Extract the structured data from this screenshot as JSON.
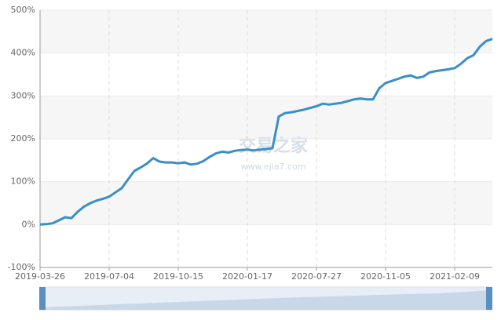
{
  "chart_data": {
    "type": "line",
    "categories": [
      "2019-03-26",
      null,
      null,
      null,
      null,
      null,
      null,
      null,
      null,
      null,
      null,
      "2019-07-04",
      null,
      null,
      null,
      null,
      null,
      null,
      null,
      null,
      null,
      null,
      "2019-10-15",
      null,
      null,
      null,
      null,
      null,
      null,
      null,
      null,
      null,
      null,
      "2020-01-17",
      null,
      null,
      null,
      null,
      null,
      null,
      null,
      null,
      null,
      null,
      "2020-07-27",
      null,
      null,
      null,
      null,
      null,
      null,
      null,
      null,
      null,
      null,
      "2020-11-05",
      null,
      null,
      null,
      null,
      null,
      null,
      null,
      null,
      null,
      null,
      "2021-02-09",
      null,
      null,
      null,
      null,
      null,
      null
    ],
    "values": [
      0,
      1,
      3,
      10,
      17,
      15,
      30,
      42,
      50,
      56,
      60,
      65,
      75,
      85,
      105,
      125,
      133,
      142,
      155,
      147,
      145,
      145,
      143,
      145,
      140,
      142,
      148,
      158,
      166,
      170,
      168,
      172,
      174,
      175,
      173,
      175,
      176,
      178,
      252,
      260,
      262,
      265,
      268,
      272,
      276,
      282,
      280,
      282,
      284,
      288,
      292,
      294,
      292,
      292,
      318,
      330,
      335,
      340,
      345,
      348,
      342,
      345,
      355,
      358,
      360,
      362,
      365,
      375,
      388,
      395,
      415,
      428,
      433
    ],
    "color": "#3a8fc7",
    "ylim": [
      -100,
      500
    ],
    "yticks": [
      {
        "value": -100,
        "label": "-100%"
      },
      {
        "value": 0,
        "label": "0%"
      },
      {
        "value": 100,
        "label": "100%"
      },
      {
        "value": 200,
        "label": "200%"
      },
      {
        "value": 300,
        "label": "300%"
      },
      {
        "value": 400,
        "label": "400%"
      },
      {
        "value": 500,
        "label": "500%"
      }
    ],
    "grid": true,
    "watermark": [
      "交易之家",
      "www.ejia7.com"
    ]
  }
}
